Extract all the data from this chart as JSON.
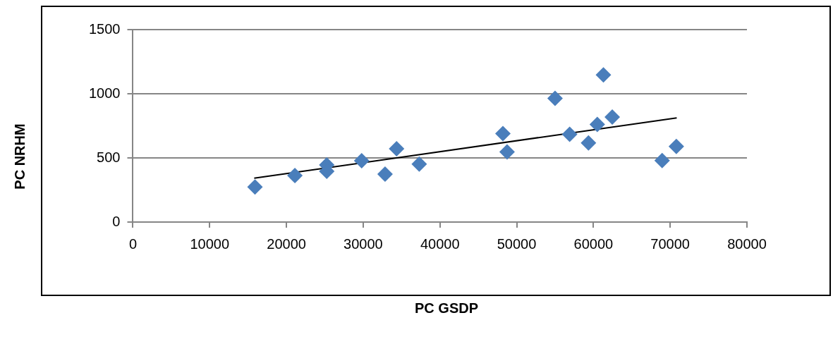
{
  "chart_data": {
    "type": "scatter",
    "xlabel": "PC GSDP",
    "ylabel": "PC NRHM",
    "xlim": [
      0,
      80000
    ],
    "xticks": [
      0,
      10000,
      20000,
      30000,
      40000,
      50000,
      60000,
      70000,
      80000
    ],
    "ylim": [
      0,
      1500
    ],
    "yticks": [
      0,
      500,
      1000,
      1500
    ],
    "grid": "y",
    "legend": false,
    "series": [
      {
        "type": "scatter",
        "color": "#4a7ebb",
        "marker": "diamond",
        "x": [
          15900,
          21100,
          25250,
          25250,
          29800,
          32850,
          34350,
          37300,
          48200,
          48750,
          55000,
          56900,
          59350,
          60500,
          61300,
          62450,
          68950,
          70800
        ],
        "values": [
          274,
          362,
          445,
          395,
          478,
          373,
          571,
          452,
          690,
          547,
          964,
          684,
          617,
          761,
          1147,
          818,
          479,
          589
        ]
      },
      {
        "type": "line",
        "color": "#000000",
        "marker": "none",
        "line_style": "solid",
        "x": [
          15800,
          70850
        ],
        "values": [
          342,
          812
        ]
      }
    ]
  }
}
